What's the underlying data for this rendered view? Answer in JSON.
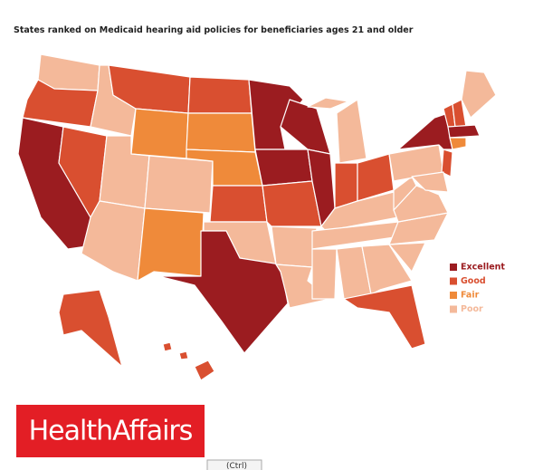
{
  "title": "States ranked on Medicaid hearing aid policies for beneficiaries ages 21 and older",
  "legend": [
    {
      "label": "Excellent",
      "color": "#9b1c20"
    },
    {
      "label": "Good",
      "color": "#d94f30"
    },
    {
      "label": "Fair",
      "color": "#ef8a3a"
    },
    {
      "label": "Poor",
      "color": "#f4b99a"
    }
  ],
  "logo": "HealthAffairs",
  "paste_button": "(Ctrl)"
}
